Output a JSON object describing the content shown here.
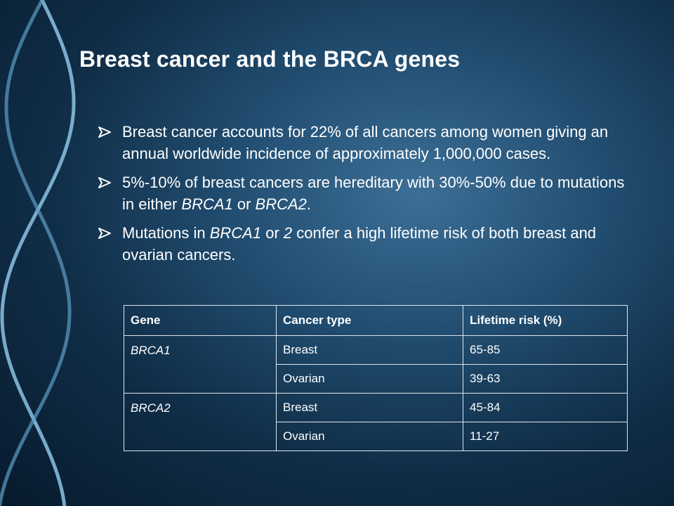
{
  "slide": {
    "title": "Breast cancer and the BRCA genes",
    "bullets": [
      {
        "parts": [
          {
            "text": "Breast cancer accounts for 22% of all cancers among women giving an annual worldwide incidence of approximately 1,000,000 cases."
          }
        ]
      },
      {
        "parts": [
          {
            "text": "5%-10% of breast cancers are hereditary with 30%-50% due to mutations in either "
          },
          {
            "text": "BRCA1",
            "italic": true
          },
          {
            "text": " or "
          },
          {
            "text": "BRCA2",
            "italic": true
          },
          {
            "text": "."
          }
        ]
      },
      {
        "parts": [
          {
            "text": "Mutations in "
          },
          {
            "text": "BRCA1",
            "italic": true
          },
          {
            "text": " or "
          },
          {
            "text": "2",
            "italic": true
          },
          {
            "text": " confer a high lifetime risk of both breast and ovarian cancers."
          }
        ]
      }
    ],
    "bullet_icon": "arrow-bullet-icon",
    "table": {
      "headers": [
        "Gene",
        "Cancer type",
        "Lifetime risk (%)"
      ],
      "groups": [
        {
          "gene": "BRCA1",
          "rows": [
            {
              "type": "Breast",
              "risk": "65-85"
            },
            {
              "type": "Ovarian",
              "risk": "39-63"
            }
          ]
        },
        {
          "gene": "BRCA2",
          "rows": [
            {
              "type": "Breast",
              "risk": "45-84"
            },
            {
              "type": "Ovarian",
              "risk": "11-27"
            }
          ]
        }
      ]
    }
  },
  "colors": {
    "background": "#214d70",
    "text": "#ffffff",
    "dna_strand": "#7fb6d8"
  }
}
